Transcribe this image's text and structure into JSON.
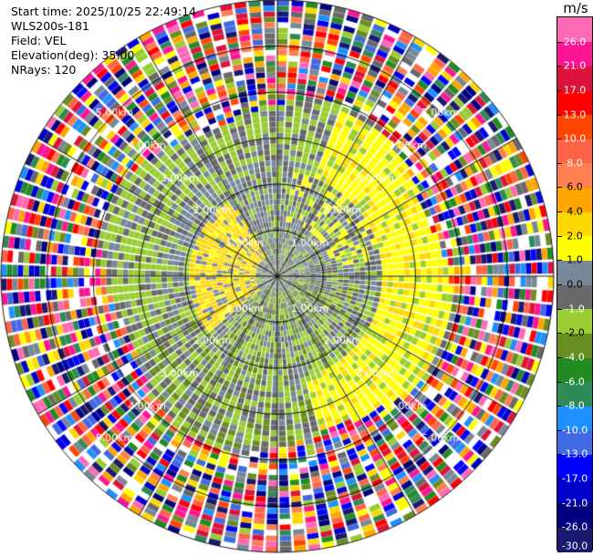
{
  "info": {
    "start_time": "Start time: 2025/10/25 22:49:14",
    "device": "WLS200s-181",
    "field": "Field: VEL",
    "elevation": "Elevation(deg): 35.00",
    "nrays": "NRays: 120"
  },
  "colorbar": {
    "unit": "m/s",
    "colors": [
      "#191970",
      "#000080",
      "#0000cd",
      "#0000ff",
      "#4169e1",
      "#1e90ff",
      "#2e8b57",
      "#228b22",
      "#6b8e23",
      "#9acd32",
      "#696969",
      "#778899",
      "#ffff00",
      "#ffd700",
      "#ffa500",
      "#ff7f50",
      "#ff6347",
      "#ff4500",
      "#ff0000",
      "#dc143c",
      "#ff1493",
      "#ff69b4"
    ],
    "labels": [
      "-30.0",
      "-26.0",
      "-21.0",
      "-17.0",
      "-13.0",
      "-10.0",
      "-8.0",
      "-6.0",
      "-4.0",
      "-2.0",
      "-1.0",
      "0.0",
      "1.0",
      "2.0",
      "4.0",
      "6.0",
      "8.0",
      "10.0",
      "13.0",
      "17.0",
      "21.0",
      "26.0"
    ]
  },
  "chart_data": {
    "type": "heatmap",
    "description_field": "VEL",
    "unit": "m/s",
    "nrays": 120,
    "range_max_km": 6.0,
    "range_rings_km": [
      1.0,
      2.0,
      3.0,
      4.0,
      5.0,
      6.0
    ],
    "ring_labels": [
      "1.00km",
      "2.00km",
      "3.00km",
      "4.00km",
      "5.00km"
    ],
    "spokes_deg": [
      0,
      30,
      60,
      90,
      120,
      150,
      180,
      210,
      240,
      270,
      300,
      330
    ],
    "pattern": "Near-field gray/olive (~-2 to 0 m/s) with yellow (1-2 m/s) arcs to the west and northeast, olive-green (-2 to -4 m/s) to the south and east, noisy random velocities beyond ~3.8 km"
  }
}
